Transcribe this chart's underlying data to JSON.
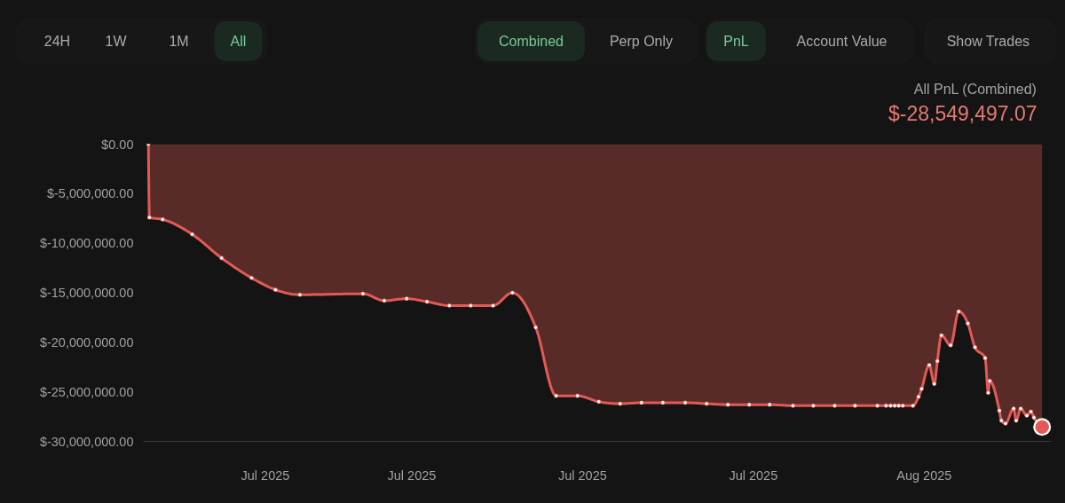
{
  "chart_data": {
    "type": "area",
    "title": "All PnL (Combined)",
    "subtitle": "$-28,549,497.07",
    "annotations": [
      "24H",
      "1W",
      "1M",
      "All",
      "Combined",
      "Perp Only",
      "PnL",
      "Account Value",
      "Show Trades"
    ],
    "x": [
      "2025-07-02T05:00",
      "2025-07-02T06:00",
      "2025-07-02T19:00",
      "2025-07-04T00:00",
      "2025-07-05T05:00",
      "2025-07-06T10:30",
      "2025-07-07T10:00",
      "2025-07-08T10:00",
      "2025-07-11T00:00",
      "2025-07-11T21:00",
      "2025-07-12T19:00",
      "2025-07-13T15:00",
      "2025-07-14T13:00",
      "2025-07-15T10:00",
      "2025-07-16T08:00",
      "2025-07-17T03:00",
      "2025-07-18T02:00",
      "2025-07-18T22:00",
      "2025-07-19T19:00",
      "2025-07-20T16:00",
      "2025-07-21T13:00",
      "2025-07-22T10:00",
      "2025-07-23T07:00",
      "2025-07-24T05:00",
      "2025-07-25T02:00",
      "2025-07-25T23:00",
      "2025-07-26T20:00",
      "2025-07-27T16:00",
      "2025-07-28T15:00",
      "2025-07-29T11:00",
      "2025-07-30T08:00",
      "2025-07-31T04:00",
      "2025-08-01T02:00",
      "2025-08-01T10:30",
      "2025-08-01T15:00",
      "2025-08-01T19:00",
      "2025-08-01T23:00",
      "2025-08-02T03:00",
      "2025-08-02T13:00",
      "2025-08-02T18:30",
      "2025-08-02T21:30",
      "2025-08-03T05:00",
      "2025-08-03T10:00",
      "2025-08-03T13:00",
      "2025-08-03T17:00",
      "2025-08-04T02:00",
      "2025-08-04T10:00",
      "2025-08-04T19:00",
      "2025-08-05T02:00",
      "2025-08-05T12:00",
      "2025-08-05T15:00",
      "2025-08-05T16:30",
      "2025-08-06T02:00",
      "2025-08-06T04:00",
      "2025-08-06T08:00",
      "2025-08-06T16:00",
      "2025-08-06T18:30",
      "2025-08-06T23:00",
      "2025-08-07T05:00",
      "2025-08-07T09:00",
      "2025-08-07T12:00",
      "2025-08-07T20:00"
    ],
    "series": [
      {
        "color": "#e35a54",
        "values": [
          0,
          -7400000,
          -7600000,
          -9100000,
          -11500000,
          -13500000,
          -14700000,
          -15200000,
          -15100000,
          -15800000,
          -15600000,
          -15900000,
          -16300000,
          -16300000,
          -16300000,
          -15000000,
          -18500000,
          -25400000,
          -25400000,
          -26000000,
          -26200000,
          -26100000,
          -26100000,
          -26100000,
          -26200000,
          -26300000,
          -26300000,
          -26300000,
          -26400000,
          -26400000,
          -26400000,
          -26400000,
          -26400000,
          -26400000,
          -26400000,
          -26400000,
          -26400000,
          -26400000,
          -26400000,
          -25500000,
          -24700000,
          -22300000,
          -24200000,
          -21900000,
          -19300000,
          -20300000,
          -16900000,
          -18100000,
          -20500000,
          -21600000,
          -25100000,
          -23900000,
          -26900000,
          -27900000,
          -28200000,
          -26700000,
          -27900000,
          -26700000,
          -27400000,
          -27000000,
          -27600000,
          -28549497.07
        ]
      },
      {
        "type": "scatter",
        "color": "#e35a54",
        "x": [
          "2025-08-07T20:00"
        ],
        "values": [
          -28549497.07
        ]
      }
    ],
    "xlim": [
      "2025-07-02T00:00",
      "2025-08-08T05:00"
    ],
    "xticks": [
      {
        "value": "2025-07-07",
        "label": "Jul 2025"
      },
      {
        "value": "2025-07-13",
        "label": "Jul 2025"
      },
      {
        "value": "2025-07-20",
        "label": "Jul 2025"
      },
      {
        "value": "2025-07-27",
        "label": "Jul 2025"
      },
      {
        "value": "2025-08-03",
        "label": "Aug 2025"
      }
    ],
    "ylim": [
      -30000000,
      0
    ],
    "yticks": [
      {
        "value": 0,
        "label": "$0.00"
      },
      {
        "value": -5000000,
        "label": "$-5,000,000.00"
      },
      {
        "value": -10000000,
        "label": "$-10,000,000.00"
      },
      {
        "value": -15000000,
        "label": "$-15,000,000.00"
      },
      {
        "value": -20000000,
        "label": "$-20,000,000.00"
      },
      {
        "value": -25000000,
        "label": "$-25,000,000.00"
      },
      {
        "value": -30000000,
        "label": "$-30,000,000.00"
      }
    ],
    "marker": "circle"
  }
}
